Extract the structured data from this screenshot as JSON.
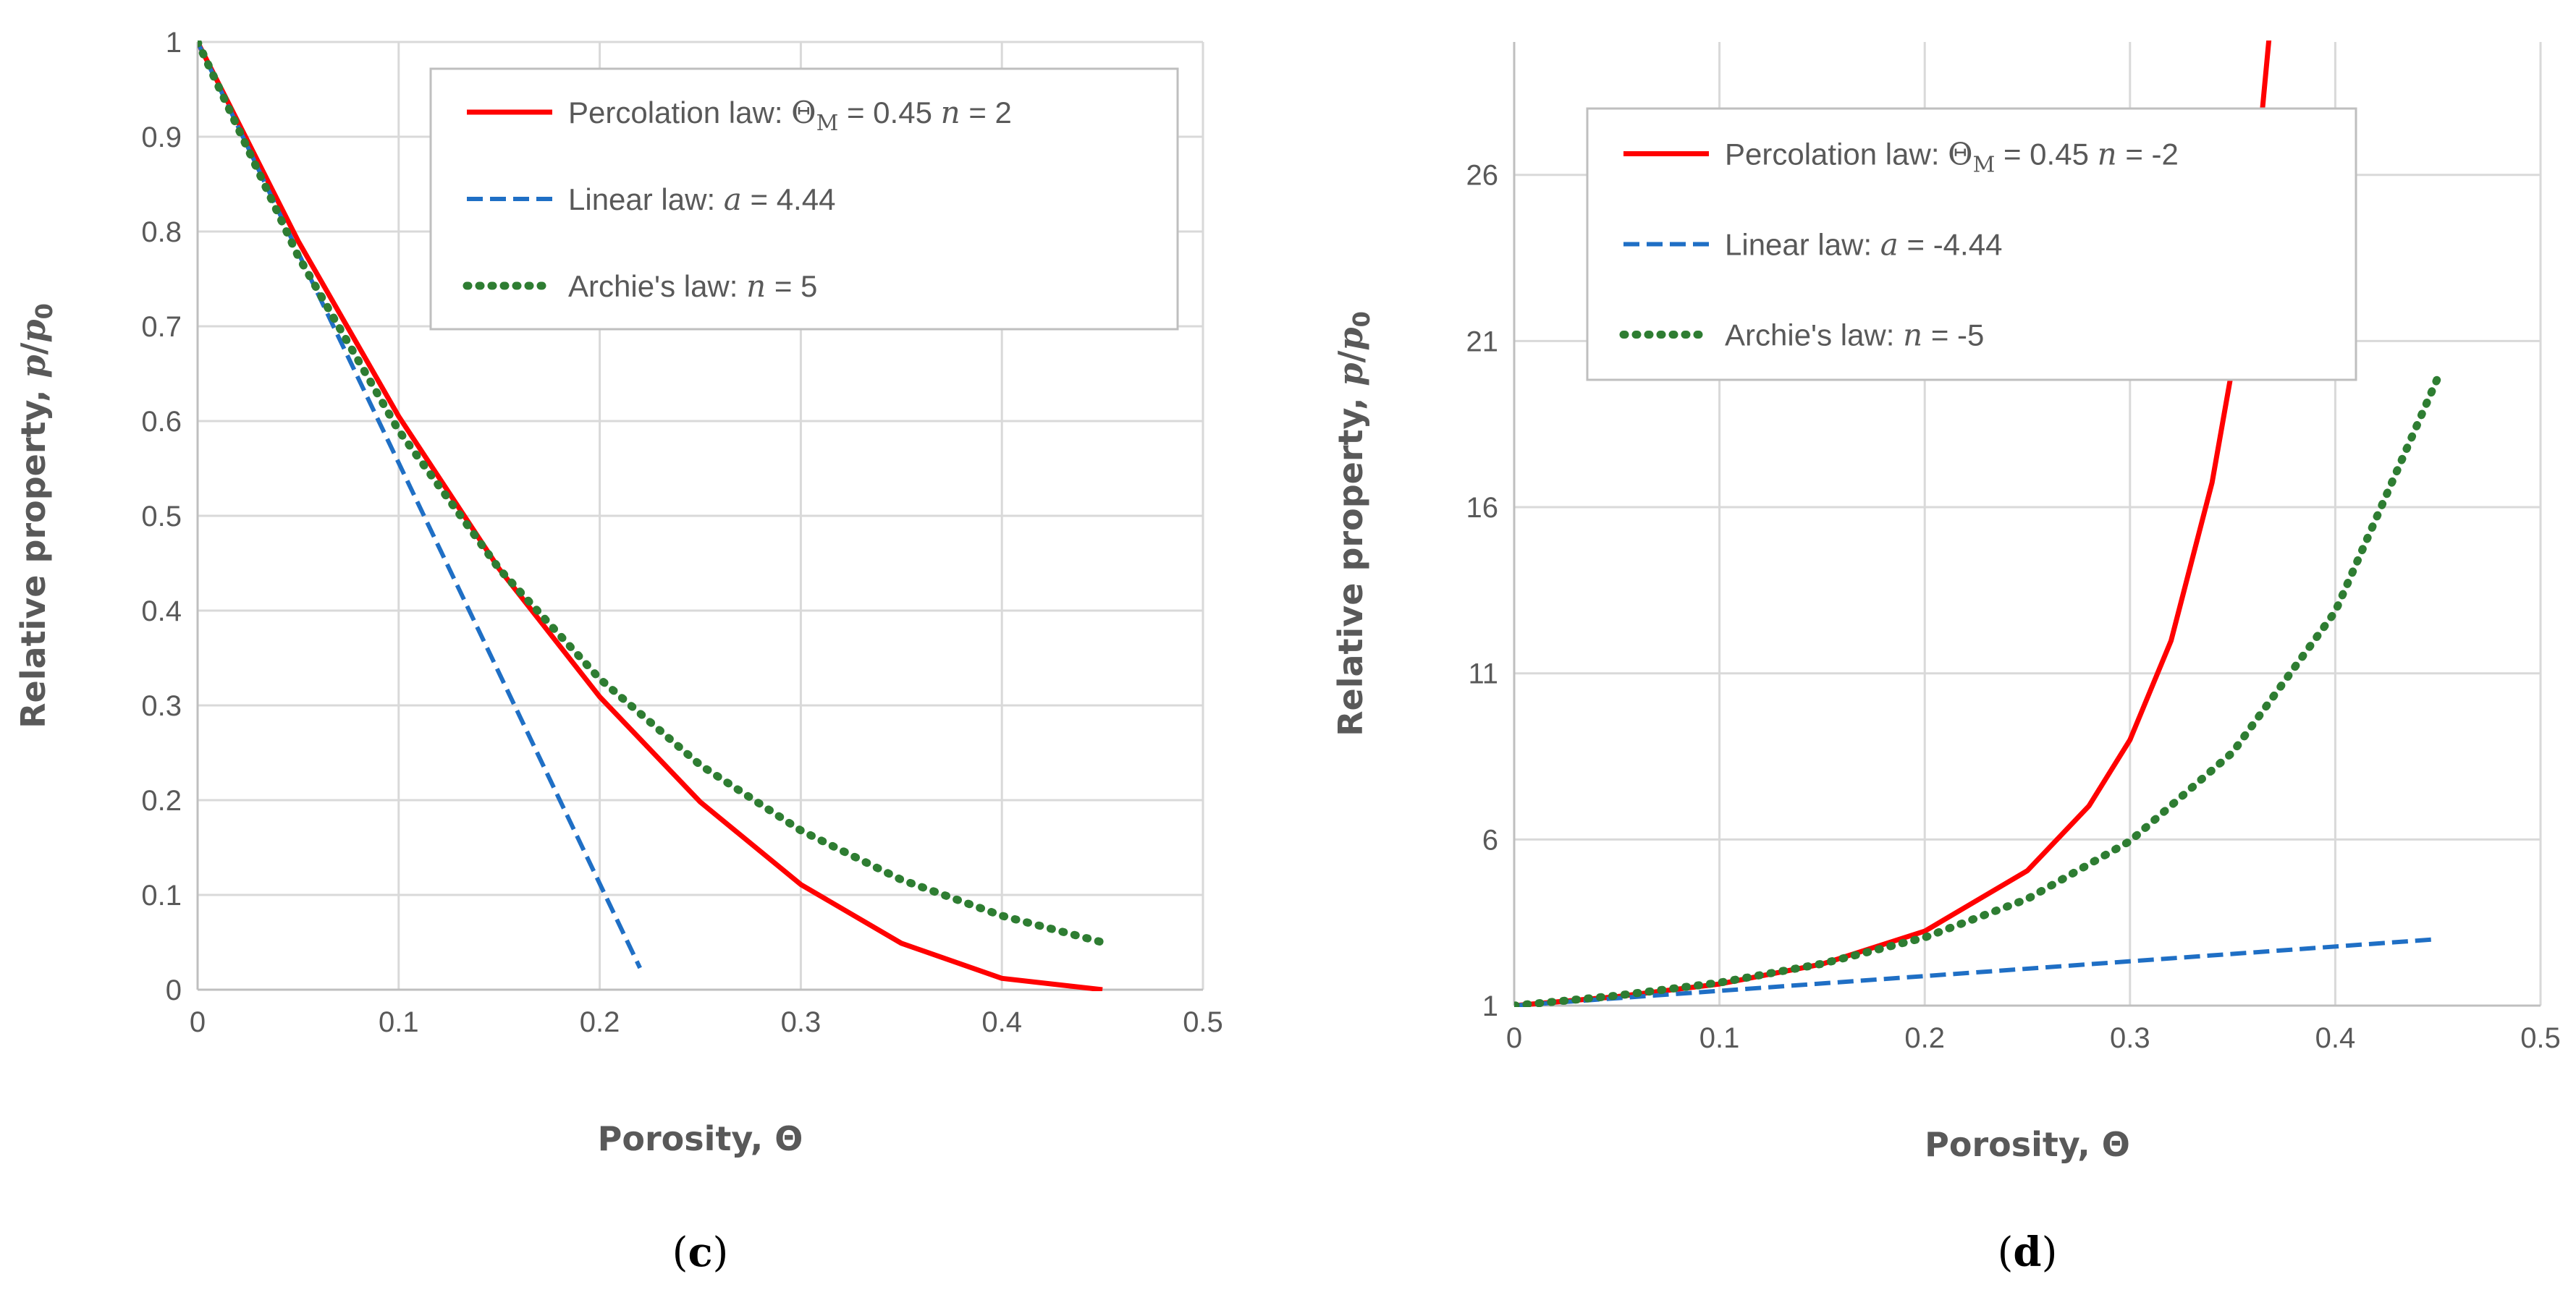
{
  "chart_data": [
    {
      "type": "line",
      "panel_label": "(c)",
      "xlabel": "Porosity, Θ",
      "ylabel": "Relative property, p/p0",
      "xlim": [
        0,
        0.5
      ],
      "ylim": [
        0,
        1
      ],
      "xticks": [
        "0",
        "0.1",
        "0.2",
        "0.3",
        "0.4",
        "0.5"
      ],
      "yticks": [
        "0",
        "0.1",
        "0.2",
        "0.3",
        "0.4",
        "0.5",
        "0.6",
        "0.7",
        "0.8",
        "0.9",
        "1"
      ],
      "grid": true,
      "legend_position": "top-right",
      "series": [
        {
          "name": "Percolation law: ΘM = 0.45 n = 2",
          "label_prefix": "Percolation law: ",
          "label_theta": "Θ",
          "label_sub": "M",
          "label_mid": " = 0.45  ",
          "label_var": "n",
          "label_val": " = 2",
          "style": "solid",
          "color": "#ff0000",
          "x": [
            0,
            0.05,
            0.1,
            0.15,
            0.2,
            0.25,
            0.3,
            0.35,
            0.4,
            0.45
          ],
          "y": [
            1,
            0.79,
            0.605,
            0.444,
            0.309,
            0.198,
            0.111,
            0.049,
            0.012,
            0
          ]
        },
        {
          "name": "Linear law: a = 4.44",
          "label_prefix": "Linear law: ",
          "label_var": "a",
          "label_val": " = 4.44",
          "style": "dashed",
          "color": "#1f6fc5",
          "x": [
            0,
            0.22
          ],
          "y": [
            1,
            0.023
          ]
        },
        {
          "name": "Archie's law: n = 5",
          "label_prefix": "Archie's law: ",
          "label_var": "n",
          "label_val": " = 5",
          "style": "dotted",
          "color": "#2e7d32",
          "x": [
            0,
            0.05,
            0.1,
            0.15,
            0.2,
            0.25,
            0.3,
            0.35,
            0.4,
            0.45
          ],
          "y": [
            1,
            0.774,
            0.59,
            0.444,
            0.328,
            0.237,
            0.168,
            0.116,
            0.078,
            0.05
          ]
        }
      ]
    },
    {
      "type": "line",
      "panel_label": "(d)",
      "xlabel": "Porosity, Θ",
      "ylabel": "Relative property, p/p0",
      "xlim": [
        0,
        0.5
      ],
      "ylim": [
        1,
        30
      ],
      "xticks": [
        "0",
        "0.1",
        "0.2",
        "0.3",
        "0.4",
        "0.5"
      ],
      "yticks": [
        "1",
        "6",
        "11",
        "16",
        "21",
        "26"
      ],
      "grid": true,
      "legend_position": "top-left",
      "series": [
        {
          "name": "Percolation law: ΘM = 0.45 n = -2",
          "label_prefix": "Percolation law: ",
          "label_theta": "Θ",
          "label_sub": "M",
          "label_mid": " = 0.45  ",
          "label_var": "n",
          "label_val": " = -2",
          "style": "solid",
          "color": "#ff0000",
          "x": [
            0,
            0.05,
            0.1,
            0.15,
            0.2,
            0.25,
            0.28,
            0.3,
            0.32,
            0.34,
            0.35,
            0.36,
            0.37
          ],
          "y": [
            1,
            1.27,
            1.65,
            2.25,
            3.24,
            5.06,
            7.01,
            9.0,
            11.98,
            16.74,
            20.25,
            25.0,
            31.6
          ]
        },
        {
          "name": "Linear law: a = -4.44",
          "label_prefix": "Linear law: ",
          "label_var": "a",
          "label_val": " = -4.44",
          "style": "dashed",
          "color": "#1f6fc5",
          "x": [
            0,
            0.45
          ],
          "y": [
            1,
            3.0
          ]
        },
        {
          "name": "Archie's law: n = -5",
          "label_prefix": "Archie's law: ",
          "label_var": "n",
          "label_val": " = -5",
          "style": "dotted",
          "color": "#2e7d32",
          "x": [
            0,
            0.05,
            0.1,
            0.15,
            0.2,
            0.25,
            0.3,
            0.35,
            0.4,
            0.45
          ],
          "y": [
            1,
            1.3,
            1.69,
            2.26,
            3.05,
            4.21,
            5.95,
            8.62,
            12.86,
            19.9
          ]
        }
      ]
    }
  ]
}
